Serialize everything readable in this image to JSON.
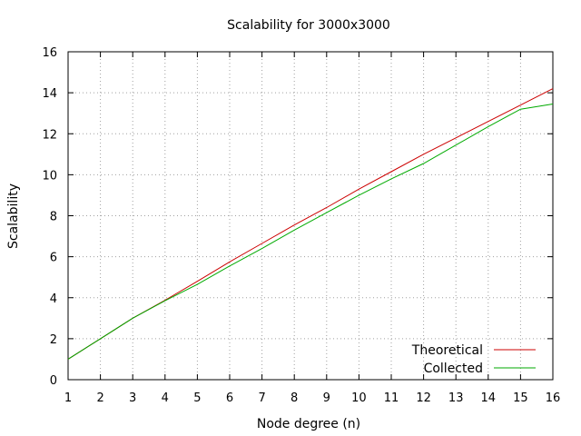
{
  "chart_data": {
    "type": "line",
    "title": "Scalability for 3000x3000",
    "xlabel": "Node degree (n)",
    "ylabel": "Scalability",
    "xlim": [
      1,
      16
    ],
    "ylim": [
      0,
      16
    ],
    "xticks": [
      1,
      2,
      3,
      4,
      5,
      6,
      7,
      8,
      9,
      10,
      11,
      12,
      13,
      14,
      15,
      16
    ],
    "yticks": [
      0,
      2,
      4,
      6,
      8,
      10,
      12,
      14,
      16
    ],
    "grid": true,
    "legend_position": "bottom-right",
    "series": [
      {
        "name": "Theoretical",
        "color": "#cc0000",
        "x": [
          1,
          2,
          3,
          4,
          5,
          6,
          7,
          8,
          9,
          10,
          11,
          12,
          13,
          14,
          15,
          16
        ],
        "y": [
          1.0,
          2.0,
          3.0,
          3.88,
          4.8,
          5.75,
          6.65,
          7.55,
          8.4,
          9.3,
          10.15,
          11.0,
          11.8,
          12.6,
          13.4,
          14.2
        ]
      },
      {
        "name": "Collected",
        "color": "#00aa00",
        "x": [
          1,
          2,
          3,
          4,
          5,
          6,
          7,
          8,
          9,
          10,
          11,
          12,
          13,
          14,
          15,
          16
        ],
        "y": [
          1.0,
          2.0,
          3.0,
          3.85,
          4.65,
          5.55,
          6.4,
          7.3,
          8.15,
          9.0,
          9.8,
          10.55,
          11.45,
          12.35,
          13.2,
          13.45
        ]
      }
    ]
  }
}
